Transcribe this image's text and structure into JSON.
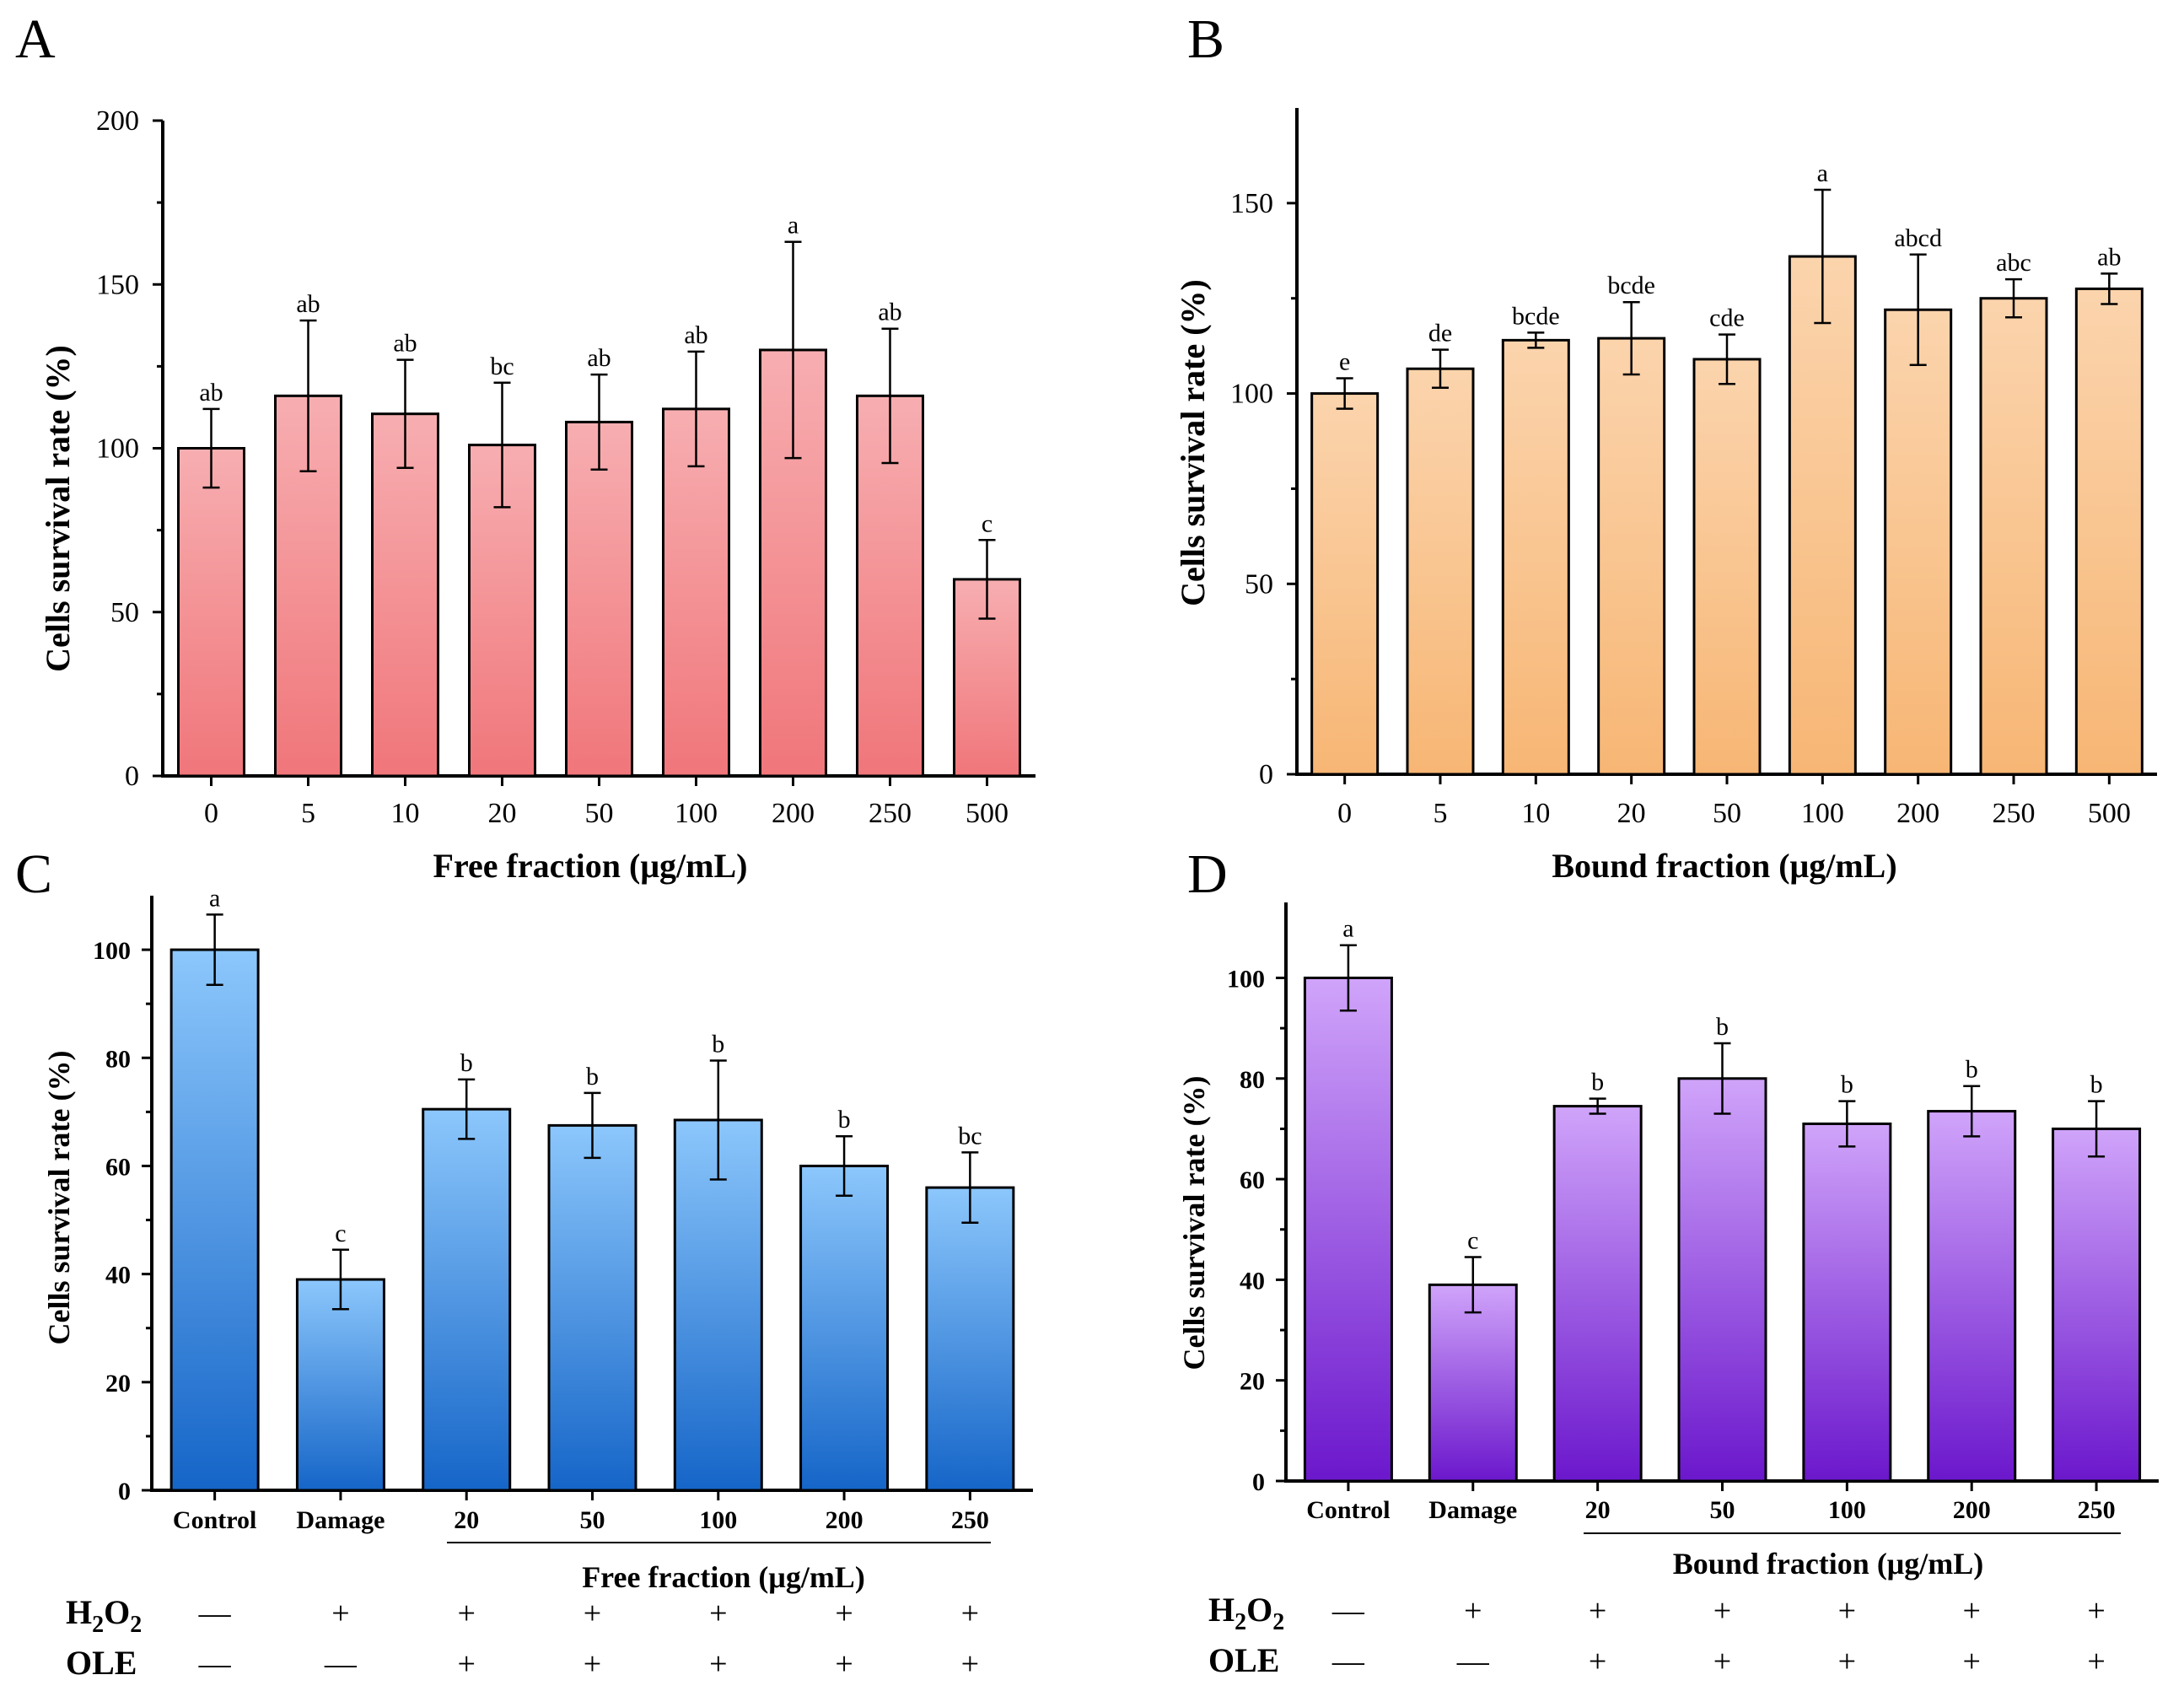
{
  "chart_data": [
    {
      "type": "bar",
      "panel": "A",
      "categories": [
        "0",
        "5",
        "10",
        "20",
        "50",
        "100",
        "200",
        "250",
        "500"
      ],
      "values": [
        100,
        116,
        110.5,
        101,
        108,
        112,
        130,
        116,
        60
      ],
      "errors": [
        12,
        23,
        16.5,
        19,
        14.5,
        17.5,
        33,
        20.5,
        12
      ],
      "significance": [
        "ab",
        "ab",
        "ab",
        "bc",
        "ab",
        "ab",
        "a",
        "ab",
        "c"
      ],
      "xlabel": "Free fraction (μg/mL)",
      "ylabel": "Cells survival rate (%)",
      "ylim": [
        0,
        200
      ],
      "yticks": [
        0,
        50,
        100,
        150,
        200
      ],
      "color_top": "#f7aeb1",
      "color_bottom": "#f0767a"
    },
    {
      "type": "bar",
      "panel": "B",
      "categories": [
        "0",
        "5",
        "10",
        "20",
        "50",
        "100",
        "200",
        "250",
        "500"
      ],
      "values": [
        100,
        106.5,
        114,
        114.5,
        109,
        136,
        122,
        125,
        127.5
      ],
      "errors": [
        4,
        5,
        2,
        9.5,
        6.5,
        17.5,
        14.5,
        5,
        4
      ],
      "significance": [
        "e",
        "de",
        "bcde",
        "bcde",
        "cde",
        "a",
        "abcd",
        "abc",
        "ab"
      ],
      "xlabel": "Bound fraction (μg/mL)",
      "ylabel": "Cells survival rate (%)",
      "ylim": [
        0,
        175
      ],
      "yticks": [
        0,
        50,
        100,
        150
      ],
      "color_top": "#fbd4ad",
      "color_bottom": "#f7b674"
    },
    {
      "type": "bar",
      "panel": "C",
      "categories": [
        "Control",
        "Damage",
        "20",
        "50",
        "100",
        "200",
        "250"
      ],
      "values": [
        100,
        39,
        70.5,
        67.5,
        68.5,
        60,
        56
      ],
      "errors": [
        6.5,
        5.5,
        5.5,
        6,
        11,
        5.5,
        6.5
      ],
      "significance": [
        "a",
        "c",
        "b",
        "b",
        "b",
        "b",
        "bc"
      ],
      "xlabel": "Free fraction (μg/mL)",
      "ylabel": "Cells survival rate (%)",
      "ylim": [
        0,
        110
      ],
      "yticks": [
        0,
        20,
        40,
        60,
        80,
        100
      ],
      "treatments": [
        {
          "label": "H2O2",
          "signs": [
            "—",
            "+",
            "+",
            "+",
            "+",
            "+",
            "+"
          ]
        },
        {
          "label": "OLE",
          "signs": [
            "—",
            "—",
            "+",
            "+",
            "+",
            "+",
            "+"
          ]
        }
      ],
      "color_top": "#8cc7fc",
      "color_bottom": "#1565c8"
    },
    {
      "type": "bar",
      "panel": "D",
      "categories": [
        "Control",
        "Damage",
        "20",
        "50",
        "100",
        "200",
        "250"
      ],
      "values": [
        100,
        39,
        74.5,
        80,
        71,
        73.5,
        70
      ],
      "errors": [
        6.5,
        5.5,
        1.5,
        7,
        4.5,
        5,
        5.5
      ],
      "significance": [
        "a",
        "c",
        "b",
        "b",
        "b",
        "b",
        "b"
      ],
      "xlabel": "Bound fraction (μg/mL)",
      "ylabel": "Cells survival rate (%)",
      "ylim": [
        0,
        115
      ],
      "yticks": [
        0,
        20,
        40,
        60,
        80,
        100
      ],
      "treatments": [
        {
          "label": "H2O2",
          "signs": [
            "—",
            "+",
            "+",
            "+",
            "+",
            "+",
            "+"
          ]
        },
        {
          "label": "OLE",
          "signs": [
            "—",
            "—",
            "+",
            "+",
            "+",
            "+",
            "+"
          ]
        }
      ],
      "color_top": "#d0a4fa",
      "color_bottom": "#6b17cc"
    }
  ]
}
